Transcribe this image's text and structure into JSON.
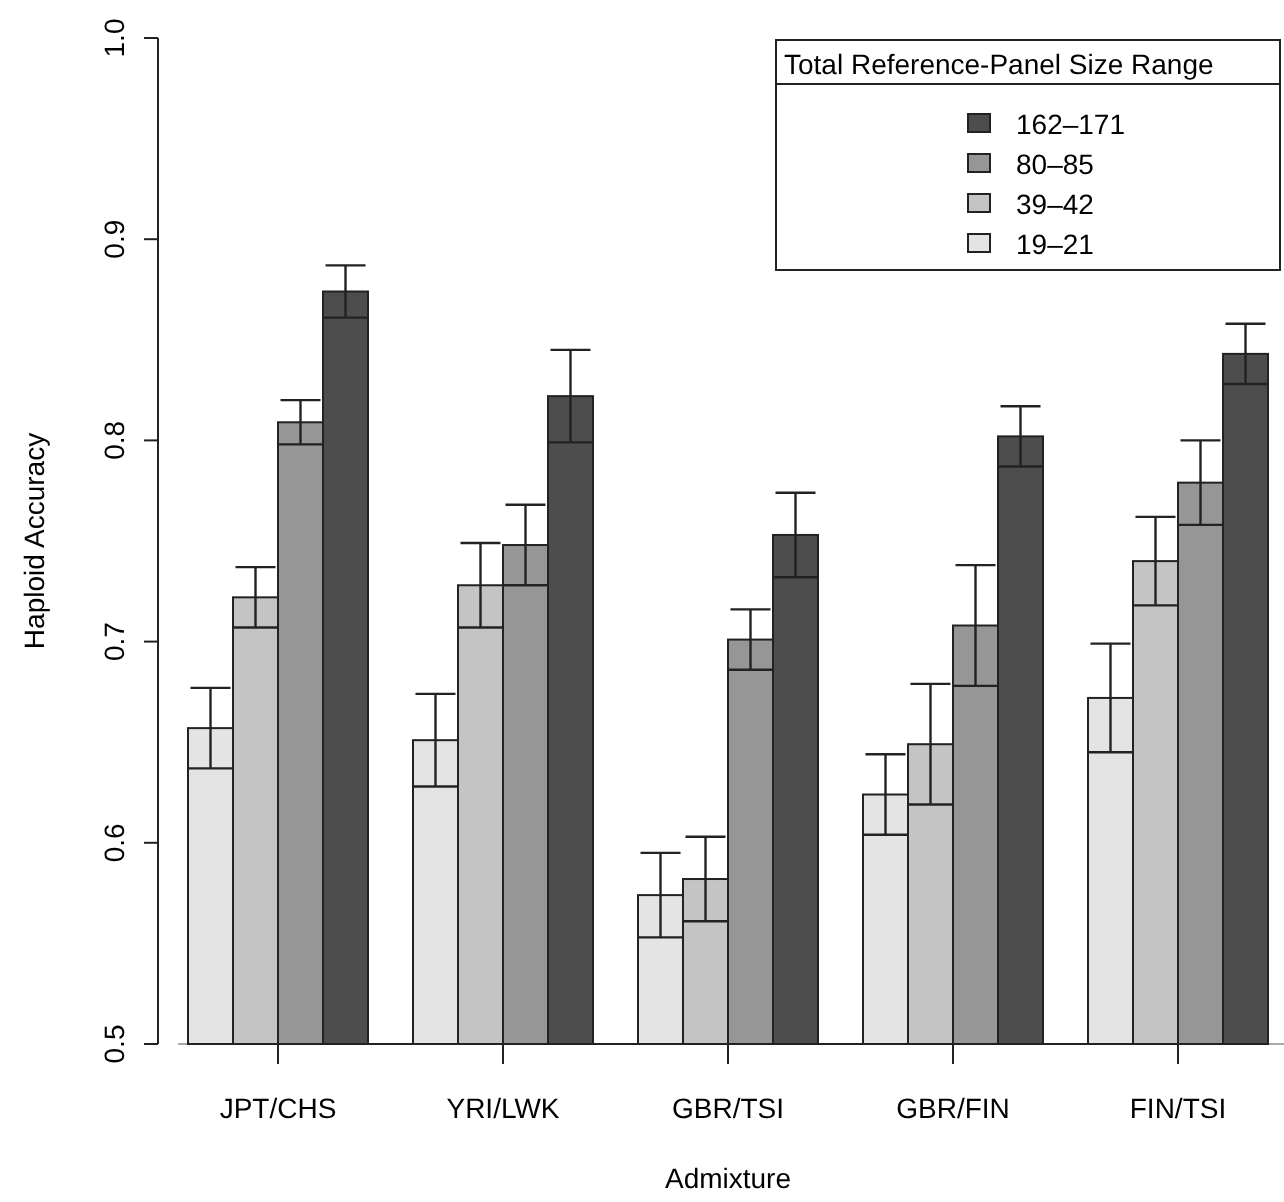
{
  "chart_data": {
    "type": "bar",
    "xlabel": "Admixture",
    "ylabel": "Haploid Accuracy",
    "legend_title": "Total Reference-Panel Size Range",
    "legend": "top right",
    "categories": [
      "JPT/CHS",
      "YRI/LWK",
      "GBR/TSI",
      "GBR/FIN",
      "FIN/TSI"
    ],
    "series": [
      {
        "name": "19–21",
        "color": "#e4e4e4",
        "values": [
          0.657,
          0.651,
          0.574,
          0.624,
          0.672
        ],
        "errors": [
          0.02,
          0.023,
          0.021,
          0.02,
          0.027
        ]
      },
      {
        "name": "39–42",
        "color": "#c4c4c4",
        "values": [
          0.722,
          0.728,
          0.582,
          0.649,
          0.74
        ],
        "errors": [
          0.015,
          0.021,
          0.021,
          0.03,
          0.022
        ]
      },
      {
        "name": "80–85",
        "color": "#969696",
        "values": [
          0.809,
          0.748,
          0.701,
          0.708,
          0.779
        ],
        "errors": [
          0.011,
          0.02,
          0.015,
          0.03,
          0.021
        ]
      },
      {
        "name": "162–171",
        "color": "#4d4d4d",
        "values": [
          0.874,
          0.822,
          0.753,
          0.802,
          0.843
        ],
        "errors": [
          0.013,
          0.023,
          0.021,
          0.015,
          0.015
        ]
      }
    ],
    "ylim": [
      0.5,
      1.0
    ],
    "yticks": [
      {
        "value": 0.5,
        "label": "0.5"
      },
      {
        "value": 0.6,
        "label": "0.6"
      },
      {
        "value": 0.7,
        "label": "0.7"
      },
      {
        "value": 0.8,
        "label": "0.8"
      },
      {
        "value": 0.9,
        "label": "0.9"
      },
      {
        "value": 1.0,
        "label": "1.0"
      }
    ]
  }
}
